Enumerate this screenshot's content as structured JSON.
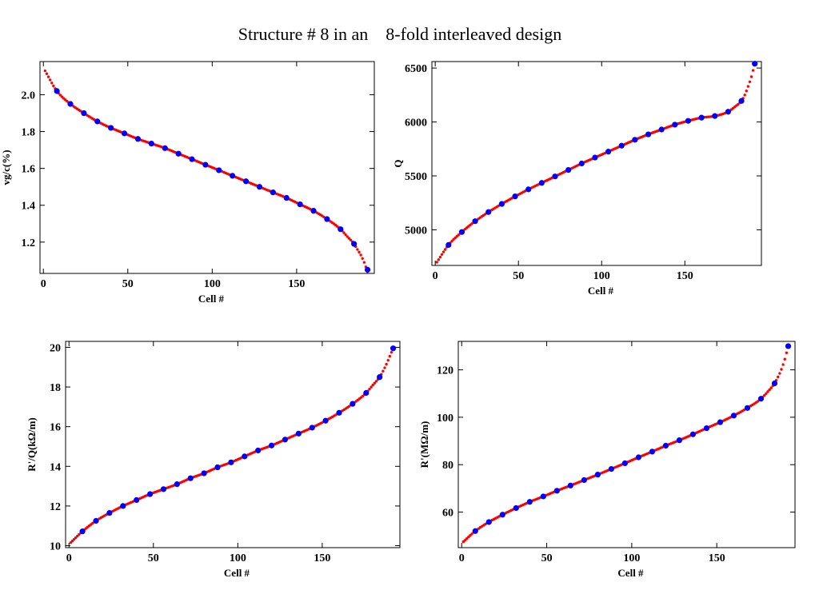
{
  "header": {
    "title_part1": "Structure # 8 in an",
    "title_part2": "8-fold interleaved design"
  },
  "colors": {
    "curve": "#ff0000",
    "points": "#0000ff",
    "frame": "#000000"
  },
  "chart_data": [
    {
      "type": "scatter",
      "title": "",
      "xlabel": "Cell #",
      "ylabel": "vg/c(%)",
      "xlim": [
        -2,
        196
      ],
      "ylim": [
        1.03,
        2.18
      ],
      "xticks": [
        0,
        50,
        100,
        150
      ],
      "yticks": [
        1.2,
        1.4,
        1.6,
        1.8,
        2.0
      ],
      "ytick_decimals": 1,
      "grid": false,
      "curve": {
        "x": [
          1,
          8,
          16,
          24,
          32,
          40,
          48,
          56,
          64,
          72,
          80,
          88,
          96,
          104,
          112,
          120,
          128,
          136,
          144,
          152,
          160,
          168,
          176,
          180,
          184,
          186,
          188,
          190,
          192
        ],
        "y": [
          2.13,
          2.02,
          1.95,
          1.9,
          1.855,
          1.82,
          1.79,
          1.76,
          1.735,
          1.71,
          1.68,
          1.65,
          1.62,
          1.59,
          1.56,
          1.53,
          1.5,
          1.47,
          1.44,
          1.405,
          1.37,
          1.325,
          1.27,
          1.23,
          1.19,
          1.16,
          1.13,
          1.09,
          1.04
        ]
      },
      "points": {
        "x": [
          8,
          16,
          24,
          32,
          40,
          48,
          56,
          64,
          72,
          80,
          88,
          96,
          104,
          112,
          120,
          128,
          136,
          144,
          152,
          160,
          168,
          176,
          184,
          192
        ],
        "y": [
          2.02,
          1.95,
          1.9,
          1.855,
          1.82,
          1.79,
          1.76,
          1.735,
          1.71,
          1.68,
          1.65,
          1.62,
          1.59,
          1.56,
          1.53,
          1.5,
          1.47,
          1.44,
          1.405,
          1.37,
          1.325,
          1.27,
          1.19,
          1.05
        ]
      }
    },
    {
      "type": "scatter",
      "title": "",
      "xlabel": "Cell #",
      "ylabel": "Q",
      "xlim": [
        -2,
        196
      ],
      "ylim": [
        4670,
        6560
      ],
      "xticks": [
        0,
        50,
        100,
        150
      ],
      "yticks": [
        5000,
        5500,
        6000,
        6500
      ],
      "ytick_decimals": 0,
      "grid": false,
      "curve": {
        "x": [
          1,
          8,
          16,
          24,
          32,
          40,
          48,
          56,
          64,
          72,
          80,
          88,
          96,
          104,
          112,
          120,
          128,
          136,
          144,
          152,
          160,
          168,
          176,
          180,
          184,
          186,
          188,
          190,
          192
        ],
        "y": [
          4700,
          4860,
          4980,
          5080,
          5165,
          5240,
          5310,
          5375,
          5435,
          5495,
          5555,
          5615,
          5670,
          5725,
          5780,
          5835,
          5885,
          5930,
          5975,
          6010,
          6040,
          6055,
          6095,
          6140,
          6195,
          6250,
          6330,
          6420,
          6540
        ]
      },
      "points": {
        "x": [
          8,
          16,
          24,
          32,
          40,
          48,
          56,
          64,
          72,
          80,
          88,
          96,
          104,
          112,
          120,
          128,
          136,
          144,
          152,
          160,
          168,
          176,
          184,
          192
        ],
        "y": [
          4860,
          4980,
          5080,
          5165,
          5240,
          5310,
          5375,
          5435,
          5495,
          5555,
          5615,
          5670,
          5725,
          5780,
          5835,
          5885,
          5930,
          5975,
          6010,
          6040,
          6055,
          6095,
          6195,
          6540
        ]
      }
    },
    {
      "type": "scatter",
      "title": "",
      "xlabel": "Cell #",
      "ylabel": "R'/Q(kΩ/m)",
      "xlim": [
        -2,
        196
      ],
      "ylim": [
        9.9,
        20.3
      ],
      "xticks": [
        0,
        50,
        100,
        150
      ],
      "yticks": [
        10,
        12,
        14,
        16,
        18,
        20
      ],
      "ytick_decimals": 0,
      "grid": false,
      "curve": {
        "x": [
          1,
          8,
          16,
          24,
          32,
          40,
          48,
          56,
          64,
          72,
          80,
          88,
          96,
          104,
          112,
          120,
          128,
          136,
          144,
          152,
          160,
          168,
          176,
          180,
          184,
          186,
          188,
          190,
          192
        ],
        "y": [
          10.15,
          10.72,
          11.25,
          11.65,
          12.0,
          12.3,
          12.6,
          12.85,
          13.1,
          13.4,
          13.65,
          13.95,
          14.2,
          14.5,
          14.8,
          15.05,
          15.35,
          15.65,
          15.95,
          16.3,
          16.7,
          17.15,
          17.7,
          18.1,
          18.5,
          18.8,
          19.15,
          19.55,
          19.95
        ]
      },
      "points": {
        "x": [
          8,
          16,
          24,
          32,
          40,
          48,
          56,
          64,
          72,
          80,
          88,
          96,
          104,
          112,
          120,
          128,
          136,
          144,
          152,
          160,
          168,
          176,
          184,
          192
        ],
        "y": [
          10.72,
          11.25,
          11.65,
          12.0,
          12.3,
          12.6,
          12.85,
          13.1,
          13.4,
          13.65,
          13.95,
          14.2,
          14.5,
          14.8,
          15.05,
          15.35,
          15.65,
          15.95,
          16.3,
          16.7,
          17.15,
          17.7,
          18.5,
          19.95
        ]
      }
    },
    {
      "type": "scatter",
      "title": "",
      "xlabel": "Cell #",
      "ylabel": "R'(MΩ/m)",
      "xlim": [
        -2,
        196
      ],
      "ylim": [
        45,
        132
      ],
      "xticks": [
        0,
        50,
        100,
        150
      ],
      "yticks": [
        60,
        80,
        100,
        120
      ],
      "ytick_decimals": 0,
      "grid": false,
      "curve": {
        "x": [
          1,
          8,
          16,
          24,
          32,
          40,
          48,
          56,
          64,
          72,
          80,
          88,
          96,
          104,
          112,
          120,
          128,
          136,
          144,
          152,
          160,
          168,
          176,
          180,
          184,
          186,
          188,
          190,
          192
        ],
        "y": [
          47.5,
          52.0,
          55.8,
          58.9,
          61.7,
          64.3,
          66.6,
          69.0,
          71.2,
          73.5,
          75.8,
          78.2,
          80.6,
          83.1,
          85.5,
          88.0,
          90.3,
          92.8,
          95.4,
          97.9,
          100.7,
          103.9,
          107.8,
          110.8,
          114.3,
          117.0,
          120.2,
          124.5,
          130.0
        ]
      },
      "points": {
        "x": [
          8,
          16,
          24,
          32,
          40,
          48,
          56,
          64,
          72,
          80,
          88,
          96,
          104,
          112,
          120,
          128,
          136,
          144,
          152,
          160,
          168,
          176,
          184,
          192
        ],
        "y": [
          52.0,
          55.8,
          58.9,
          61.7,
          64.3,
          66.6,
          69.0,
          71.2,
          73.5,
          75.8,
          78.2,
          80.6,
          83.1,
          85.5,
          88.0,
          90.3,
          92.8,
          95.4,
          97.9,
          100.7,
          103.9,
          107.8,
          114.3,
          130.0
        ]
      }
    }
  ]
}
